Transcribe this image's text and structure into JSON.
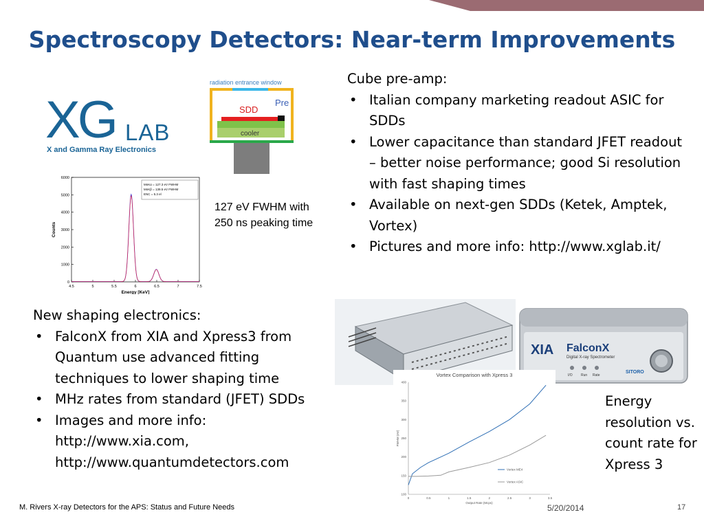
{
  "slide": {
    "title": "Spectroscopy Detectors: Near-term Improvements",
    "accent_color": "#1f4e8c",
    "bar_color": "#9b6b72"
  },
  "logo": {
    "xg": "XG",
    "lab": "LAB",
    "subtitle": "X and Gamma Ray Electronics",
    "color": "#1a6496"
  },
  "sdd_diagram": {
    "window_label": "radiation entrance window",
    "sdd_label": "SDD",
    "pre_label": "Pre",
    "cooler_label": "cooler"
  },
  "spectrum_chart": {
    "caption": [
      "127 eV FWHM with",
      "250 ns peaking time"
    ],
    "chart_data": {
      "type": "line",
      "xlabel": "Energy [KeV]",
      "ylabel": "Counts",
      "xlim": [
        4.5,
        7.5
      ],
      "ylim": [
        0,
        6000
      ],
      "xticks": [
        "4.5",
        "5",
        "5.5",
        "6",
        "6.5",
        "7",
        "7.5"
      ],
      "yticks": [
        "0",
        "1000",
        "2000",
        "3000",
        "4000",
        "5000",
        "6000"
      ],
      "legend": [
        "MnKα = 127.3 eV FWHM",
        "MnKβ = 139.5 eV FWHM",
        "ENC = 5.3 el"
      ],
      "legend_position": "top-right",
      "peaks": [
        {
          "center": 5.9,
          "height": 5000,
          "sigma": 0.055
        },
        {
          "center": 6.49,
          "height": 700,
          "sigma": 0.06
        }
      ]
    }
  },
  "cube": {
    "heading": "Cube pre-amp:",
    "bullets": [
      "Italian company marketing readout ASIC for SDDs",
      "Lower capacitance than standard JFET readout – better noise performance; good Si resolution with fast shaping times",
      "Available on next-gen SDDs (Ketek, Amptek, Vortex)",
      "Pictures and more info: http://www.xglab.it/"
    ]
  },
  "shaping": {
    "heading": "New shaping electronics:",
    "bullets": [
      "FalconX from XIA and Xpress3 from Quantum use advanced fitting techniques to lower shaping time",
      "MHz rates from standard (JFET) SDDs",
      "Images and more info: http://www.xia.com, http://www.quantumdetectors.com"
    ]
  },
  "falcon_photo": {
    "brand": "XIA",
    "product": "FalconX",
    "tagline": "Digital X-ray Spectrometer",
    "badge": "SITORO",
    "panel_labels": [
      "I/O",
      "Run",
      "Rate"
    ]
  },
  "vortex_chart": {
    "chart_data": {
      "type": "line",
      "title": "Vortex Comparison with Xpress 3",
      "xlabel": "Output Rate (Mcps)",
      "ylabel": "FWHM (eV)",
      "xlim": [
        0,
        3.5
      ],
      "ylim": [
        100,
        400
      ],
      "xticks": [
        "0",
        "0.5",
        "1",
        "1.5",
        "2",
        "2.5",
        "3",
        "3.5"
      ],
      "yticks": [
        "100",
        "150",
        "200",
        "250",
        "300",
        "350",
        "400"
      ],
      "legend_position": "bottom-right",
      "series": [
        {
          "name": "Vortex ME4",
          "color": "#2f6fb5",
          "x": [
            0,
            0.1,
            0.3,
            0.5,
            0.8,
            1.0,
            1.5,
            2.0,
            2.5,
            3.0,
            3.4
          ],
          "y": [
            125,
            155,
            172,
            185,
            200,
            210,
            240,
            268,
            300,
            342,
            392
          ]
        },
        {
          "name": "Vortex ASIC",
          "color": "#999999",
          "x": [
            0,
            0.2,
            0.5,
            0.8,
            1.0,
            1.5,
            2.0,
            2.5,
            3.0,
            3.4
          ],
          "y": [
            148,
            148,
            149,
            151,
            160,
            172,
            185,
            205,
            232,
            258
          ]
        }
      ]
    }
  },
  "energy_caption": "Energy resolution vs. count rate for Xpress 3",
  "footer": {
    "left": "M. Rivers X-ray Detectors for the APS: Status and Future Needs",
    "date": "5/20/2014",
    "page": "17"
  }
}
